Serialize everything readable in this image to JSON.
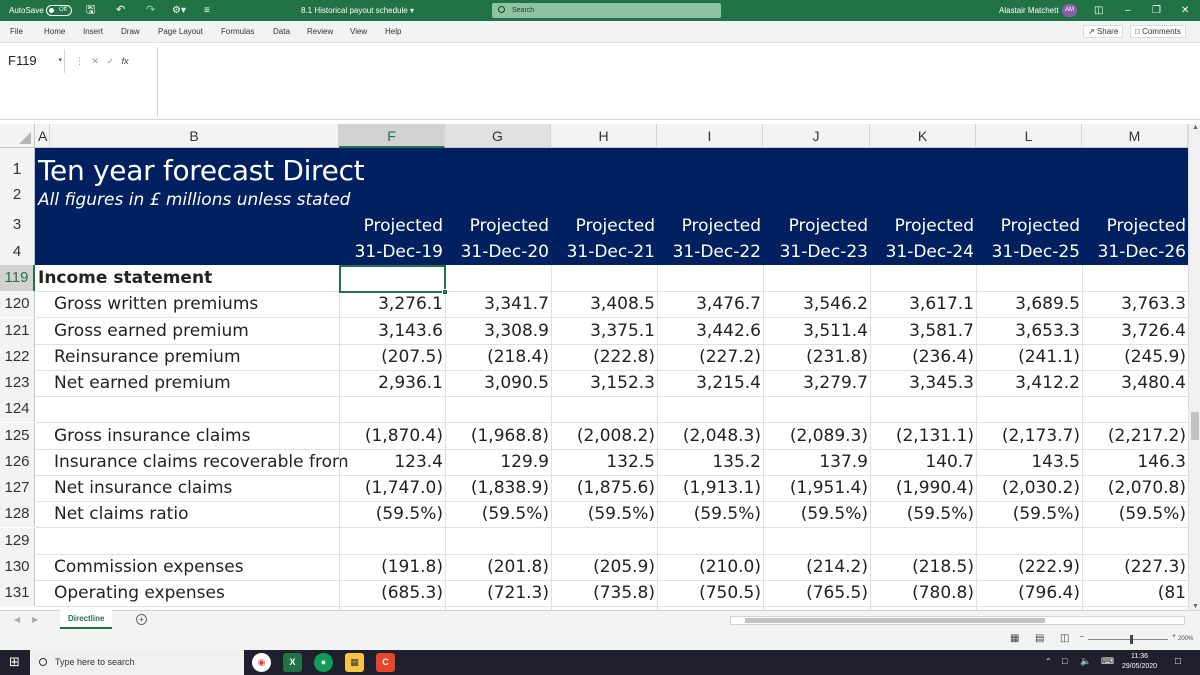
{
  "window": {
    "autosave_label": "AutoSave",
    "autosave_state": "Off",
    "doc_title": "8.1 Historical payout schedule",
    "search_placeholder": "Search",
    "user_name": "Alastair Matchett",
    "user_initials": "AM",
    "brand_color": "#217346"
  },
  "menu": {
    "tabs": [
      "File",
      "Home",
      "Insert",
      "Draw",
      "Page Layout",
      "Formulas",
      "Data",
      "Review",
      "View",
      "Help"
    ],
    "share_label": "Share",
    "comments_label": "Comments"
  },
  "formula_bar": {
    "name_box": "F119",
    "fx_label": "fx",
    "formula": ""
  },
  "columns": [
    "A",
    "B",
    "F",
    "G",
    "H",
    "I",
    "J",
    "K",
    "L",
    "M"
  ],
  "header_band": {
    "color": "#002060",
    "title": "Ten year forecast Direct",
    "subtitle": "All figures in £ millions unless stated",
    "projected_label": "Projected",
    "dates": [
      "31-Dec-19",
      "31-Dec-20",
      "31-Dec-21",
      "31-Dec-22",
      "31-Dec-23",
      "31-Dec-24",
      "31-Dec-25",
      "31-Dec-26"
    ]
  },
  "header_rows": [
    "1",
    "2",
    "3",
    "4"
  ],
  "rows": [
    {
      "num": "119",
      "label": "Income statement",
      "bold": true,
      "values": [
        "",
        "",
        "",
        "",
        "",
        "",
        "",
        ""
      ]
    },
    {
      "num": "120",
      "label": "Gross written premiums",
      "values": [
        "3,276.1",
        "3,341.7",
        "3,408.5",
        "3,476.7",
        "3,546.2",
        "3,617.1",
        "3,689.5",
        "3,763.3"
      ]
    },
    {
      "num": "121",
      "label": "Gross earned premium",
      "values": [
        "3,143.6",
        "3,308.9",
        "3,375.1",
        "3,442.6",
        "3,511.4",
        "3,581.7",
        "3,653.3",
        "3,726.4"
      ]
    },
    {
      "num": "122",
      "label": "Reinsurance premium",
      "values": [
        "(207.5)",
        "(218.4)",
        "(222.8)",
        "(227.2)",
        "(231.8)",
        "(236.4)",
        "(241.1)",
        "(245.9)"
      ]
    },
    {
      "num": "123",
      "label": "Net earned premium",
      "values": [
        "2,936.1",
        "3,090.5",
        "3,152.3",
        "3,215.4",
        "3,279.7",
        "3,345.3",
        "3,412.2",
        "3,480.4"
      ]
    },
    {
      "num": "124",
      "label": "",
      "values": [
        "",
        "",
        "",
        "",
        "",
        "",
        "",
        ""
      ]
    },
    {
      "num": "125",
      "label": "Gross insurance claims",
      "values": [
        "(1,870.4)",
        "(1,968.8)",
        "(2,008.2)",
        "(2,048.3)",
        "(2,089.3)",
        "(2,131.1)",
        "(2,173.7)",
        "(2,217.2)"
      ]
    },
    {
      "num": "126",
      "label": "Insurance claims recoverable from",
      "values": [
        "123.4",
        "129.9",
        "132.5",
        "135.2",
        "137.9",
        "140.7",
        "143.5",
        "146.3"
      ]
    },
    {
      "num": "127",
      "label": "Net insurance claims",
      "values": [
        "(1,747.0)",
        "(1,838.9)",
        "(1,875.6)",
        "(1,913.1)",
        "(1,951.4)",
        "(1,990.4)",
        "(2,030.2)",
        "(2,070.8)"
      ]
    },
    {
      "num": "128",
      "label": "Net claims ratio",
      "values": [
        "(59.5%)",
        "(59.5%)",
        "(59.5%)",
        "(59.5%)",
        "(59.5%)",
        "(59.5%)",
        "(59.5%)",
        "(59.5%)"
      ]
    },
    {
      "num": "129",
      "label": "",
      "values": [
        "",
        "",
        "",
        "",
        "",
        "",
        "",
        ""
      ]
    },
    {
      "num": "130",
      "label": "Commission expenses",
      "values": [
        "(191.8)",
        "(201.8)",
        "(205.9)",
        "(210.0)",
        "(214.2)",
        "(218.5)",
        "(222.9)",
        "(227.3)"
      ]
    },
    {
      "num": "131",
      "label": "Operating expenses",
      "values": [
        "(685.3)",
        "(721.3)",
        "(735.8)",
        "(750.5)",
        "(765.5)",
        "(780.8)",
        "(796.4)",
        "(81"
      ]
    }
  ],
  "sheet_tabs": [
    "Directline"
  ],
  "status": {
    "zoom": "200%"
  },
  "taskbar": {
    "search_placeholder": "Type here to search",
    "time": "11:36",
    "date": "29/05/2020"
  }
}
